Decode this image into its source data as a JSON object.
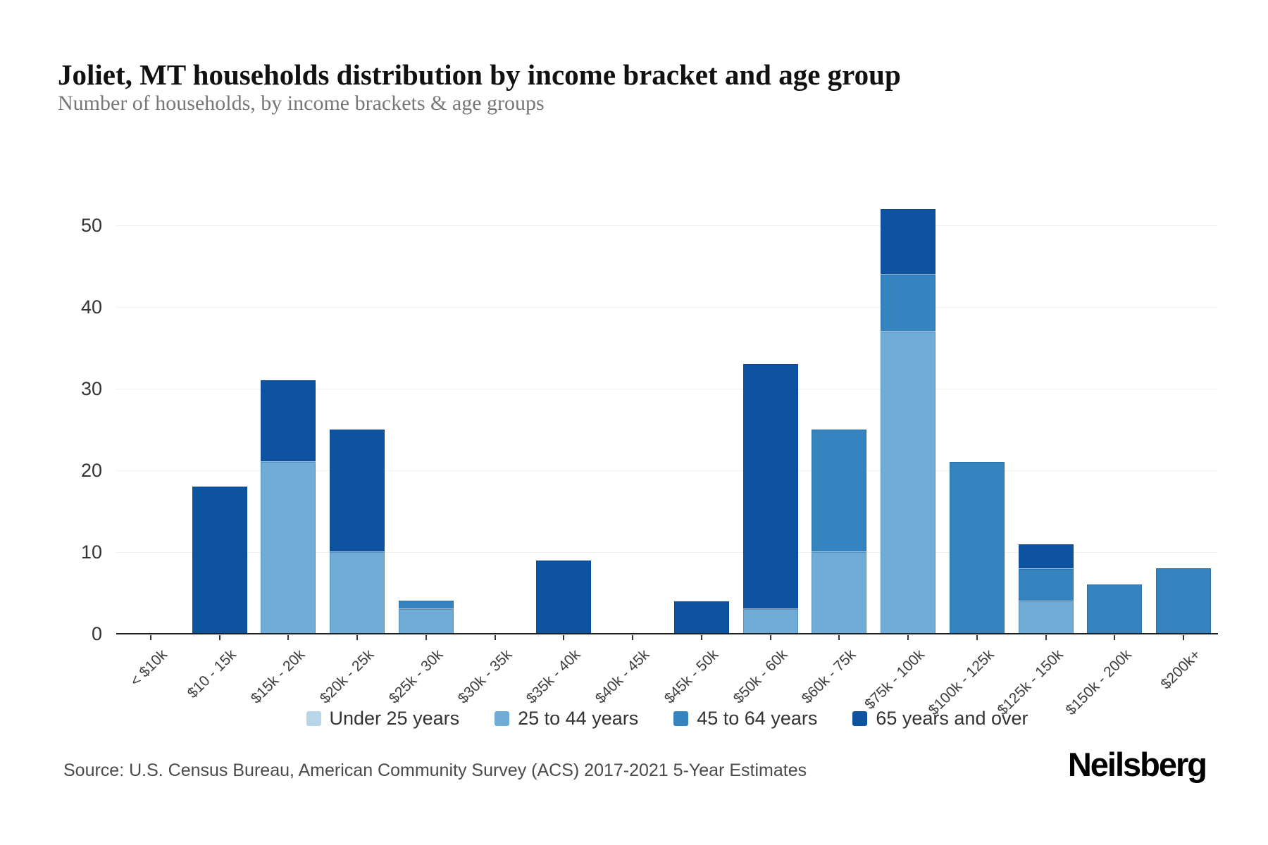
{
  "header": {
    "title": "Joliet, MT households distribution by income bracket and age group",
    "subtitle": "Number of households, by income brackets & age groups"
  },
  "footer": {
    "source": "Source: U.S. Census Bureau, American Community Survey (ACS) 2017-2021 5-Year Estimates",
    "brand": "Neilsberg"
  },
  "chart_data": {
    "type": "bar",
    "stacked": true,
    "title": "Joliet, MT households distribution by income bracket and age group",
    "xlabel": "",
    "ylabel": "Number of households",
    "ylim": [
      0,
      52
    ],
    "yticks": [
      0,
      10,
      20,
      30,
      40,
      50
    ],
    "grid": "horizontal",
    "legend_position": "bottom",
    "categories": [
      "< $10k",
      "$10 - 15k",
      "$15k - 20k",
      "$20k - 25k",
      "$25k - 30k",
      "$30k - 35k",
      "$35k - 40k",
      "$40k - 45k",
      "$45k - 50k",
      "$50k - 60k",
      "$60k - 75k",
      "$75k - 100k",
      "$100k - 125k",
      "$125k - 150k",
      "$150k - 200k",
      "$200k+"
    ],
    "series": [
      {
        "name": "Under 25 years",
        "color": "#b8d5e9",
        "values": [
          0,
          0,
          0,
          0,
          0,
          0,
          0,
          0,
          0,
          0,
          0,
          0,
          0,
          0,
          0,
          0
        ]
      },
      {
        "name": "25 to 44 years",
        "color": "#6fadd7",
        "values": [
          0,
          0,
          21,
          10,
          3,
          0,
          0,
          0,
          0,
          3,
          10,
          37,
          0,
          4,
          0,
          0
        ]
      },
      {
        "name": "45 to 64 years",
        "color": "#3583bf",
        "values": [
          0,
          0,
          0,
          0,
          1,
          0,
          0,
          0,
          0,
          0,
          15,
          7,
          21,
          4,
          6,
          8
        ]
      },
      {
        "name": "65 years and over",
        "color": "#0d53a0",
        "values": [
          0,
          18,
          10,
          15,
          0,
          0,
          9,
          0,
          4,
          30,
          0,
          8,
          0,
          3,
          0,
          0
        ]
      }
    ],
    "totals": [
      0,
      18,
      31,
      25,
      4,
      0,
      9,
      0,
      4,
      33,
      25,
      52,
      21,
      11,
      6,
      8
    ]
  }
}
